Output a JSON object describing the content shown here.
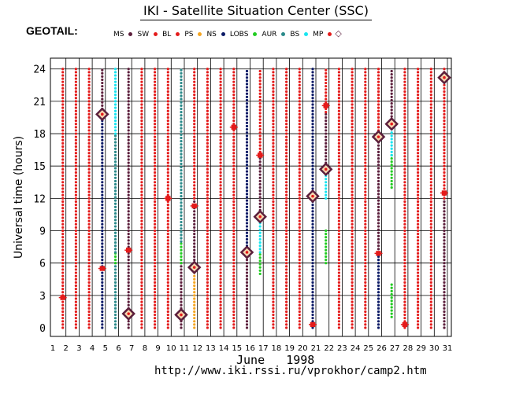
{
  "title": "IKI - Satellite Situation Center (SSC)",
  "satellite": "GEOTAIL:",
  "url": "http://www.iki.rssi.ru/vprokhor/camp2.htm",
  "legend": [
    {
      "label": "MS",
      "color": "#5c1f3c",
      "shape": "dot"
    },
    {
      "label": "SW",
      "color": "#e41b1b",
      "shape": "dot"
    },
    {
      "label": "BL",
      "color": "#e41b1b",
      "shape": "dot"
    },
    {
      "label": "PS",
      "color": "#f5a623",
      "shape": "dot"
    },
    {
      "label": "NS",
      "color": "#0b1a66",
      "shape": "dot"
    },
    {
      "label": "LOBS",
      "color": "#22cc22",
      "shape": "dot"
    },
    {
      "label": "AUR",
      "color": "#2a8a8a",
      "shape": "dot"
    },
    {
      "label": "BS",
      "color": "#19e5f0",
      "shape": "dot"
    },
    {
      "label": "MP",
      "color": "#e41b1b",
      "shape": "dot-diamond"
    }
  ],
  "chart_data": {
    "type": "scatter",
    "title": "IKI - Satellite Situation Center (SSC)",
    "xlabel": "June   1998",
    "ylabel": "Universal time (hours)",
    "xlim": [
      1,
      31
    ],
    "ylim": [
      0,
      24
    ],
    "xticks": [
      "1",
      "2",
      "3",
      "4",
      "5",
      "6",
      "7",
      "8",
      "9",
      "10",
      "11",
      "12",
      "13",
      "14",
      "15",
      "16",
      "17",
      "18",
      "19",
      "20",
      "21",
      "22",
      "23",
      "24",
      "25",
      "26",
      "27",
      "28",
      "29",
      "30",
      "31"
    ],
    "yticks": [
      "0",
      "3",
      "6",
      "9",
      "12",
      "15",
      "18",
      "21",
      "24"
    ],
    "grid": true,
    "days": [
      {
        "day": 2,
        "segments": [
          [
            "SW",
            0,
            24
          ]
        ]
      },
      {
        "day": 3,
        "segments": [
          [
            "SW",
            0,
            24
          ]
        ]
      },
      {
        "day": 4,
        "segments": [
          [
            "SW",
            0,
            24
          ]
        ]
      },
      {
        "day": 5,
        "segments": [
          [
            "NS",
            0,
            20
          ],
          [
            "MS",
            20,
            24
          ]
        ]
      },
      {
        "day": 6,
        "segments": [
          [
            "AUR",
            0,
            6
          ],
          [
            "LOBS",
            6,
            7
          ],
          [
            "AUR",
            7,
            18
          ],
          [
            "BS",
            18,
            24
          ]
        ]
      },
      {
        "day": 7,
        "segments": [
          [
            "MS",
            0,
            24
          ]
        ]
      },
      {
        "day": 8,
        "segments": [
          [
            "SW",
            0,
            24
          ]
        ]
      },
      {
        "day": 9,
        "segments": [
          [
            "SW",
            0,
            24
          ]
        ]
      },
      {
        "day": 10,
        "segments": [
          [
            "SW",
            0,
            24
          ]
        ]
      },
      {
        "day": 11,
        "segments": [
          [
            "MS",
            0,
            6
          ],
          [
            "LOBS",
            6,
            8
          ],
          [
            "AUR",
            8,
            24
          ]
        ]
      },
      {
        "day": 12,
        "segments": [
          [
            "PS",
            0,
            6
          ],
          [
            "MS",
            6,
            12
          ],
          [
            "SW",
            12,
            24
          ]
        ]
      },
      {
        "day": 13,
        "segments": [
          [
            "SW",
            0,
            24
          ]
        ]
      },
      {
        "day": 14,
        "segments": [
          [
            "SW",
            0,
            24
          ]
        ]
      },
      {
        "day": 15,
        "segments": [
          [
            "SW",
            0,
            24
          ]
        ]
      },
      {
        "day": 16,
        "segments": [
          [
            "MS",
            0,
            7
          ],
          [
            "NS",
            7,
            24
          ]
        ]
      },
      {
        "day": 17,
        "segments": [
          [
            "LOBS",
            5,
            7
          ],
          [
            "BS",
            7,
            10
          ],
          [
            "MS",
            10,
            16
          ],
          [
            "SW",
            16,
            24
          ]
        ]
      },
      {
        "day": 18,
        "segments": [
          [
            "SW",
            0,
            24
          ]
        ]
      },
      {
        "day": 19,
        "segments": [
          [
            "SW",
            0,
            24
          ]
        ]
      },
      {
        "day": 20,
        "segments": [
          [
            "SW",
            0,
            24
          ]
        ]
      },
      {
        "day": 21,
        "segments": [
          [
            "NS",
            0,
            24
          ]
        ]
      },
      {
        "day": 22,
        "segments": [
          [
            "LOBS",
            6,
            9
          ],
          [
            "BS",
            12,
            15
          ],
          [
            "MS",
            15,
            20
          ],
          [
            "SW",
            20,
            24
          ]
        ]
      },
      {
        "day": 23,
        "segments": [
          [
            "SW",
            0,
            24
          ]
        ]
      },
      {
        "day": 24,
        "segments": [
          [
            "SW",
            0,
            24
          ]
        ]
      },
      {
        "day": 25,
        "segments": [
          [
            "SW",
            0,
            24
          ]
        ]
      },
      {
        "day": 26,
        "segments": [
          [
            "NS",
            0,
            7
          ],
          [
            "MS",
            7,
            18
          ],
          [
            "SW",
            18,
            24
          ]
        ]
      },
      {
        "day": 27,
        "segments": [
          [
            "LOBS",
            1,
            4
          ],
          [
            "LOBS",
            13,
            16
          ],
          [
            "BS",
            16,
            19
          ],
          [
            "MS",
            19,
            24
          ]
        ]
      },
      {
        "day": 28,
        "segments": [
          [
            "SW",
            0,
            24
          ]
        ]
      },
      {
        "day": 29,
        "segments": [
          [
            "SW",
            0,
            24
          ]
        ]
      },
      {
        "day": 30,
        "segments": [
          [
            "SW",
            0,
            24
          ]
        ]
      },
      {
        "day": 31,
        "segments": [
          [
            "MS",
            0,
            12
          ],
          [
            "SW",
            12,
            24
          ]
        ]
      }
    ],
    "boundary_crossings": [
      {
        "day": 2,
        "ut": 2.8,
        "type": "BL"
      },
      {
        "day": 5,
        "ut": 5.5,
        "type": "BL"
      },
      {
        "day": 5,
        "ut": 19.8,
        "type": "MP"
      },
      {
        "day": 7,
        "ut": 7.2,
        "type": "BL"
      },
      {
        "day": 7,
        "ut": 1.3,
        "type": "MP"
      },
      {
        "day": 10,
        "ut": 12.0,
        "type": "BL"
      },
      {
        "day": 11,
        "ut": 1.2,
        "type": "MP"
      },
      {
        "day": 12,
        "ut": 11.3,
        "type": "BL"
      },
      {
        "day": 12,
        "ut": 5.6,
        "type": "MP"
      },
      {
        "day": 15,
        "ut": 18.6,
        "type": "BL"
      },
      {
        "day": 16,
        "ut": 7.0,
        "type": "MP"
      },
      {
        "day": 17,
        "ut": 16.0,
        "type": "BL"
      },
      {
        "day": 17,
        "ut": 10.3,
        "type": "MP"
      },
      {
        "day": 21,
        "ut": 0.3,
        "type": "BL"
      },
      {
        "day": 21,
        "ut": 12.2,
        "type": "MP"
      },
      {
        "day": 22,
        "ut": 20.6,
        "type": "BL"
      },
      {
        "day": 22,
        "ut": 14.7,
        "type": "MP"
      },
      {
        "day": 26,
        "ut": 6.9,
        "type": "BL"
      },
      {
        "day": 26,
        "ut": 17.7,
        "type": "MP"
      },
      {
        "day": 27,
        "ut": 18.9,
        "type": "MP"
      },
      {
        "day": 28,
        "ut": 0.3,
        "type": "BL"
      },
      {
        "day": 31,
        "ut": 12.5,
        "type": "BL"
      },
      {
        "day": 31,
        "ut": 23.2,
        "type": "MP"
      }
    ]
  }
}
